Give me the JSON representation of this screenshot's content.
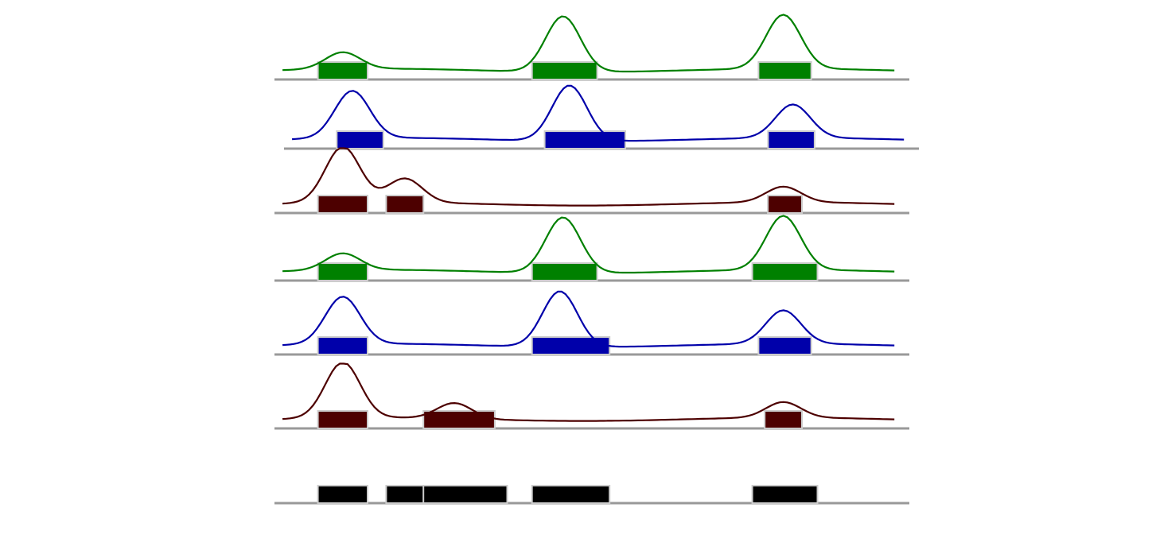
{
  "colors": {
    "green": "#008000",
    "blue": "#0000aa",
    "maroon": "#4d0000",
    "black": "#000000",
    "baseline": "#999999",
    "block_outline": "#cccccc"
  },
  "tracks": [
    {
      "color": "green",
      "blocks": [
        [
          0.07,
          0.15
        ],
        [
          0.415,
          0.52
        ],
        [
          0.78,
          0.865
        ]
      ],
      "peaks": [
        [
          0.11,
          0.3
        ],
        [
          0.465,
          1.0
        ],
        [
          0.82,
          0.97
        ]
      ]
    },
    {
      "color": "blue",
      "blocks": [
        [
          0.085,
          0.16
        ],
        [
          0.42,
          0.55
        ],
        [
          0.78,
          0.855
        ]
      ],
      "peaks": [
        [
          0.11,
          0.85
        ],
        [
          0.46,
          1.0
        ],
        [
          0.82,
          0.6
        ]
      ]
    },
    {
      "color": "maroon",
      "blocks": [
        [
          0.07,
          0.15
        ],
        [
          0.18,
          0.24
        ],
        [
          0.795,
          0.85
        ]
      ],
      "peaks": [
        [
          0.11,
          1.0
        ],
        [
          0.21,
          0.43
        ],
        [
          0.82,
          0.28
        ]
      ]
    },
    {
      "color": "green",
      "blocks": [
        [
          0.07,
          0.15
        ],
        [
          0.415,
          0.52
        ],
        [
          0.77,
          0.875
        ]
      ],
      "peaks": [
        [
          0.11,
          0.3
        ],
        [
          0.465,
          1.0
        ],
        [
          0.82,
          0.97
        ]
      ]
    },
    {
      "color": "blue",
      "blocks": [
        [
          0.07,
          0.15
        ],
        [
          0.415,
          0.54
        ],
        [
          0.78,
          0.865
        ]
      ],
      "peaks": [
        [
          0.11,
          0.85
        ],
        [
          0.46,
          1.0
        ],
        [
          0.82,
          0.6
        ]
      ]
    },
    {
      "color": "maroon",
      "blocks": [
        [
          0.07,
          0.15
        ],
        [
          0.24,
          0.355
        ],
        [
          0.79,
          0.85
        ]
      ],
      "peaks": [
        [
          0.11,
          1.0
        ],
        [
          0.29,
          0.28
        ],
        [
          0.82,
          0.28
        ]
      ]
    }
  ],
  "reference_track": {
    "color": "black",
    "blocks": [
      [
        0.07,
        0.15
      ],
      [
        0.18,
        0.25
      ],
      [
        0.24,
        0.375
      ],
      [
        0.415,
        0.54
      ],
      [
        0.77,
        0.875
      ]
    ]
  }
}
